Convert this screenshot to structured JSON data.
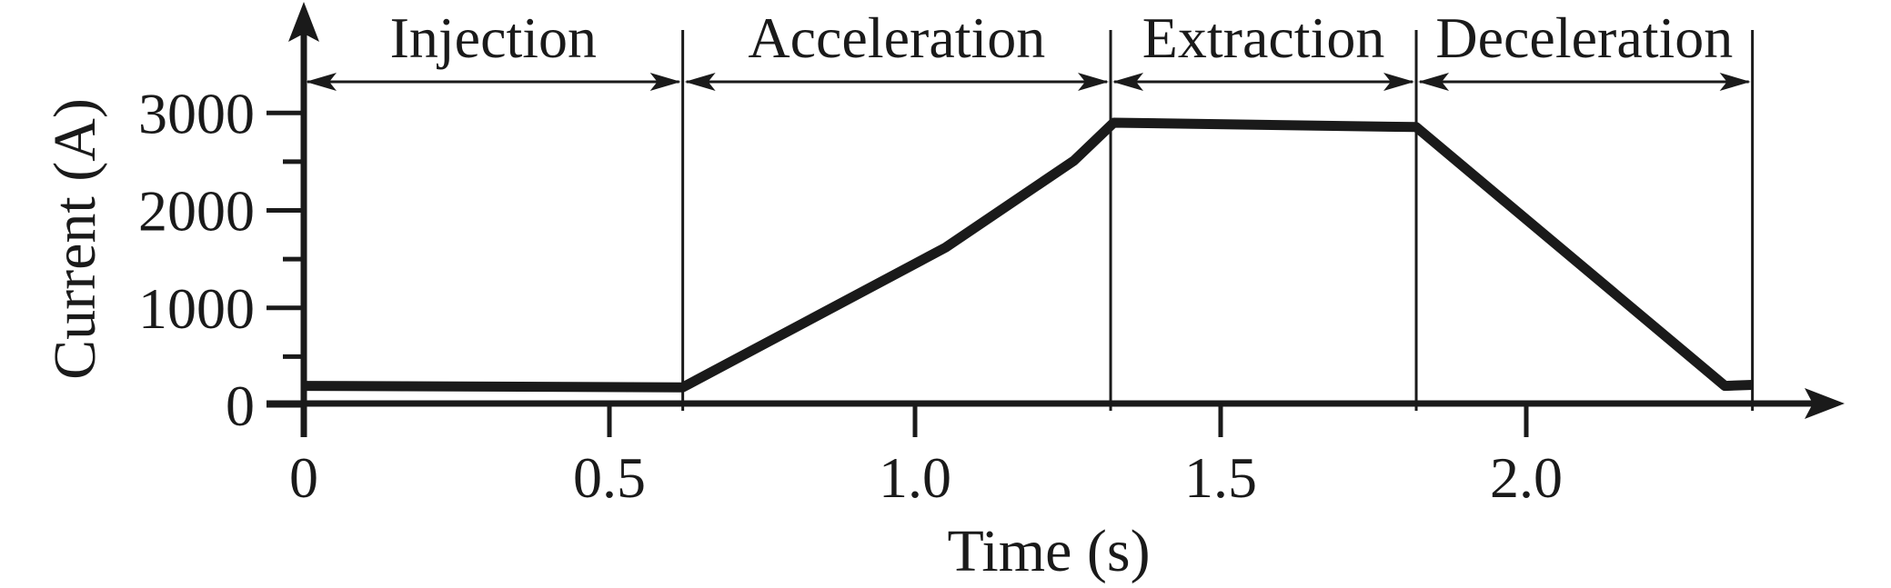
{
  "figure": {
    "background": "#ffffff",
    "ink_color": "#1a1a1a",
    "description": "Current vs time profile of a synchrotron magnet cycle with four labeled phases"
  },
  "chart_data": {
    "type": "line",
    "title": "",
    "xlabel": "Time (s)",
    "ylabel": "Current (A)",
    "xlim": [
      0,
      2.53
    ],
    "ylim": [
      0,
      3500
    ],
    "grid": false,
    "legend_position": "none",
    "line_color": "#1a1a1a",
    "x_ticks": {
      "values": [
        0,
        0.5,
        1.0,
        1.5,
        2.0
      ],
      "labels": [
        "0",
        "0.5",
        "1.0",
        "1.5",
        "2.0"
      ]
    },
    "y_ticks": {
      "values": [
        0,
        1000,
        2000,
        3000
      ],
      "labels": [
        "0",
        "1000",
        "2000",
        "3000"
      ]
    },
    "y_minor_ticks": [
      500,
      1500,
      2500
    ],
    "series": [
      {
        "name": "magnet-current-profile",
        "points": [
          [
            0,
            200
          ],
          [
            0.62,
            185
          ],
          [
            1.05,
            1620
          ],
          [
            1.26,
            2510
          ],
          [
            1.325,
            2900
          ],
          [
            1.82,
            2855
          ],
          [
            2.325,
            200
          ],
          [
            2.37,
            210
          ]
        ]
      }
    ],
    "phases": [
      {
        "label": "Injection",
        "start": 0,
        "end": 0.62
      },
      {
        "label": "Acceleration",
        "start": 0.62,
        "end": 1.32
      },
      {
        "label": "Extraction",
        "start": 1.32,
        "end": 1.82
      },
      {
        "label": "Deceleration",
        "start": 1.82,
        "end": 2.37
      }
    ]
  }
}
